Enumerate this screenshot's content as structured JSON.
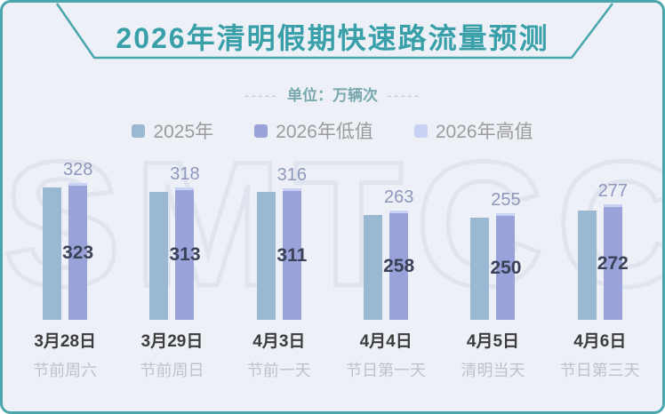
{
  "page": {
    "title": "2026年清明假期快速路流量预测",
    "unit_dashes": "-----",
    "unit_label": "单位：万辆次",
    "watermark": "SMTCC",
    "colors": {
      "background": "#edf1f7",
      "border_teal": "#4aa6ad",
      "title_teal": "#39a0aa",
      "bar_2025": "#9bb8d3",
      "bar_2026_low": "#9aa3d9",
      "bar_2026_high": "#c9d1f4",
      "high_value_label": "#8e97bc",
      "low_value_label": "#3b4158"
    }
  },
  "legend": [
    {
      "label": "2025年",
      "color": "#9bb8d3"
    },
    {
      "label": "2026年低值",
      "color": "#9aa3d9"
    },
    {
      "label": "2026年高值",
      "color": "#c9d1f4"
    }
  ],
  "chart_data": {
    "type": "bar",
    "title": "2026年清明假期快速路流量预测",
    "unit": "万辆次",
    "categories": [
      {
        "date": "3月28日",
        "desc": "节前周六"
      },
      {
        "date": "3月29日",
        "desc": "节前周日"
      },
      {
        "date": "4月3日",
        "desc": "节前一天"
      },
      {
        "date": "4月4日",
        "desc": "节日第一天"
      },
      {
        "date": "4月5日",
        "desc": "清明当天"
      },
      {
        "date": "4月6日",
        "desc": "节日第三天"
      }
    ],
    "series": [
      {
        "name": "2025年",
        "estimated": true,
        "values": [
          319,
          308,
          308,
          254,
          246,
          265
        ]
      },
      {
        "name": "2026年低值",
        "values": [
          323,
          313,
          311,
          258,
          250,
          272
        ]
      },
      {
        "name": "2026年高值",
        "values": [
          328,
          318,
          316,
          263,
          255,
          277
        ]
      }
    ],
    "value_labels_shown": [
      "2026年低值",
      "2026年高值"
    ],
    "ylim": [
      0,
      350
    ],
    "grid": false,
    "legend_position": "top"
  }
}
